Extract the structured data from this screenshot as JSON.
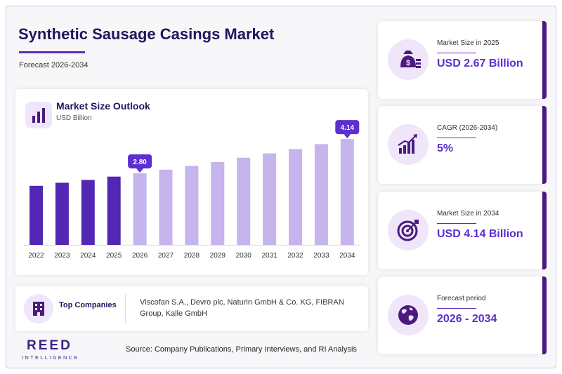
{
  "header": {
    "title": "Synthetic Sausage Casings Market",
    "subtitle": "Forecast 2026-2034"
  },
  "chart": {
    "title": "Market Size Outlook",
    "unit": "USD Billion",
    "icon": "bar-chart-icon"
  },
  "chart_data": {
    "type": "bar",
    "title": "Market Size Outlook",
    "ylabel": "USD Billion",
    "categories": [
      "2022",
      "2023",
      "2024",
      "2025",
      "2026",
      "2027",
      "2028",
      "2029",
      "2030",
      "2031",
      "2032",
      "2033",
      "2034"
    ],
    "values": [
      2.31,
      2.43,
      2.54,
      2.67,
      2.8,
      2.94,
      3.09,
      3.24,
      3.41,
      3.58,
      3.75,
      3.94,
      4.14
    ],
    "historical_count": 4,
    "callouts": [
      {
        "category": "2026",
        "label": "2.80"
      },
      {
        "category": "2034",
        "label": "4.14"
      }
    ],
    "ylim": [
      0,
      4.5
    ],
    "colors": {
      "historical": "#5127b3",
      "forecast": "#c6b4ec",
      "callout": "#5b2fd0"
    },
    "grid": false
  },
  "companies": {
    "label": "Top Companies",
    "list": "Viscofan S.A., Devro plc, Naturin GmbH & Co. KG, FIBRAN Group, Kalle GmbH"
  },
  "kpis": [
    {
      "label": "Market Size in 2025",
      "value": "USD 2.67 Billion",
      "icon": "money-bag-icon"
    },
    {
      "label": "CAGR (2026-2034)",
      "value": "5%",
      "icon": "growth-chart-icon"
    },
    {
      "label": "Market Size in 2034",
      "value": "USD 4.14 Billion",
      "icon": "target-icon"
    },
    {
      "label": "Forecast period",
      "value": "2026 - 2034",
      "icon": "globe-icon"
    }
  ],
  "footer": {
    "logo_main": "REED",
    "logo_sub": "INTELLIGENCE",
    "source": "Source: Company Publications, Primary Interviews, and RI Analysis"
  }
}
